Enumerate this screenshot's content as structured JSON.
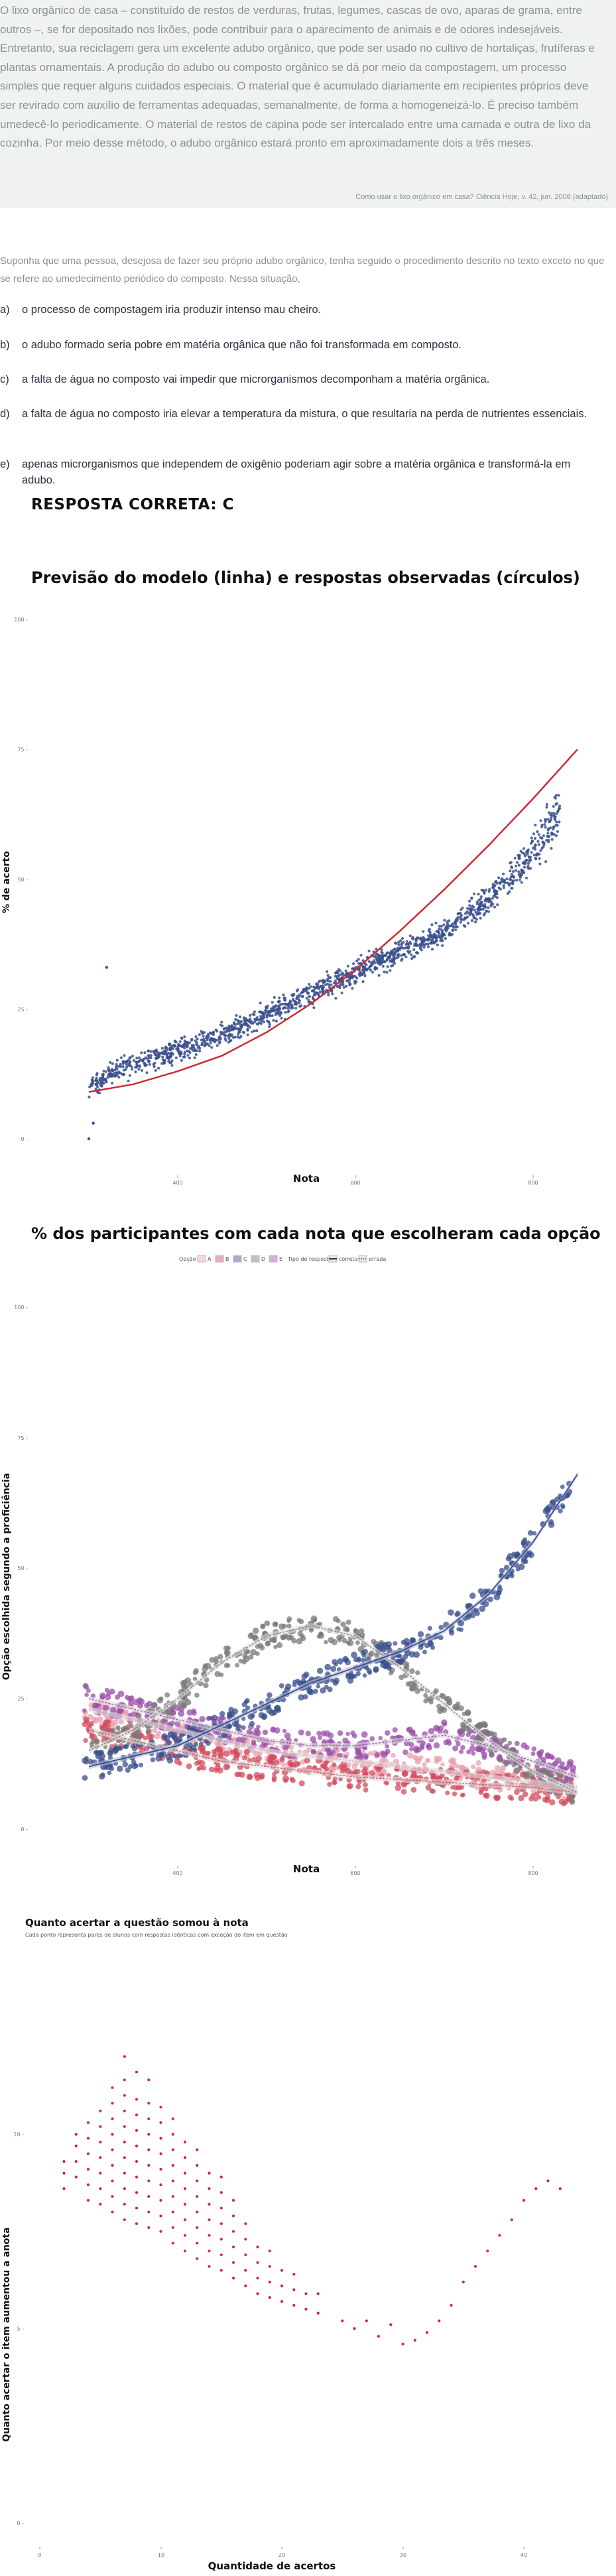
{
  "quote": {
    "text": "O lixo orgânico de casa – constituído de restos de verduras, frutas, legumes, cascas de ovo, aparas de grama, entre outros –, se for depositado nos lixões, pode contribuir para o aparecimento de animais e de odores indesejáveis. Entretanto, sua reciclagem gera um excelente adubo orgânico, que pode ser usado no cultivo de hortaliças, frutíferas e plantas ornamentais. A produção do adubo ou composto orgânico se dá por meio da compostagem, um processo simples que requer alguns cuidados especiais. O material que é acumulado diariamente em recipientes próprios deve ser revirado com auxílio de ferramentas adequadas, semanalmente, de forma a homogeneizá-lo. É preciso também umedecê-lo periodicamente. O material de restos de capina pode ser intercalado entre uma camada e outra de lixo da cozinha. Por meio desse método, o adubo orgânico estará pronto em aproximadamente dois a três meses.",
    "source": "Como usar o lixo orgânico em casa? Ciência Hoje, v. 42, jun. 2008 (adaptado)"
  },
  "prompt": "Suponha que uma pessoa, desejosa de fazer seu próprio adubo orgânico, tenha seguido o procedimento descrito no texto exceto no que se refere ao umedecimento periódico do composto. Nessa situação,",
  "options": [
    {
      "letter": "a)",
      "text": "o processo de compostagem iria produzir intenso mau cheiro."
    },
    {
      "letter": "b)",
      "text": "o adubo formado seria pobre em matéria orgânica que não foi transformada em composto."
    },
    {
      "letter": "c)",
      "text": "a falta de água no composto vai impedir que microrganismos decomponham a matéria orgânica."
    },
    {
      "letter": "d)",
      "text": "a falta de água no composto iria elevar a temperatura da mistura, o que resultaria na perda de nutrientes essenciais."
    },
    {
      "letter": "e)",
      "text": "apenas microrganismos que independem de oxigênio poderiam agir sobre a matéria orgânica e transformá-la em adubo."
    }
  ],
  "answer": "RESPOSTA CORRETA: C",
  "colors": {
    "A": "#e8a1b0",
    "B": "#d14b5e",
    "C": "#3a4f8c",
    "D": "#7a7778",
    "E": "#9a4fa8",
    "model_line": "#cc2a36",
    "points": "#3a4f8c",
    "fit_band": "#b7bdd6",
    "gain_points": "#d32644",
    "grid": "#e6e6e6"
  },
  "chart_data": [
    {
      "type": "scatter",
      "title": "Previsão do modelo (linha) e respostas observadas (círculos)",
      "xlabel": "Nota",
      "ylabel": "% de acerto",
      "x_ticks": [
        "400",
        "600",
        "800"
      ],
      "y_ticks": [
        "0 -",
        "25 -",
        "50 -",
        "75 -",
        "100 -"
      ],
      "xlim": [
        250,
        870
      ],
      "ylim": [
        0,
        100
      ],
      "grid": false,
      "model_line": {
        "x": [
          300,
          350,
          400,
          450,
          500,
          550,
          600,
          650,
          700,
          750,
          800,
          850
        ],
        "y": [
          9,
          10.5,
          13,
          16,
          20.5,
          26,
          32.5,
          40,
          48,
          56.5,
          65.5,
          75
        ]
      },
      "observed_trend": {
        "x": [
          300,
          330,
          360,
          400,
          450,
          500,
          550,
          600,
          650,
          700,
          750,
          800,
          830
        ],
        "y": [
          10,
          13,
          15,
          17,
          20,
          24,
          28,
          32,
          36,
          40,
          46,
          55,
          63
        ]
      },
      "outliers": [
        [
          320,
          33
        ],
        [
          300,
          0
        ],
        [
          305,
          3
        ]
      ]
    },
    {
      "type": "scatter",
      "title": "% dos participantes com cada nota que escolheram cada opção",
      "xlabel": "Nota",
      "ylabel": "Opção escolhida segundo a proficiência",
      "x_ticks": [
        "400",
        "600",
        "800"
      ],
      "y_ticks": [
        "0 -",
        "25 -",
        "50 -",
        "75 -",
        "100 -"
      ],
      "xlim": [
        250,
        870
      ],
      "ylim": [
        0,
        100
      ],
      "legend_position": "top",
      "legend": {
        "option_label": "Opção",
        "options": [
          "A",
          "B",
          "C",
          "D",
          "E"
        ],
        "type_label": "Tipo de resposta",
        "types": [
          "correta",
          "errada"
        ]
      },
      "series": [
        {
          "name": "A",
          "x": [
            300,
            350,
            400,
            450,
            500,
            550,
            600,
            650,
            700,
            750,
            800,
            850
          ],
          "y": [
            23,
            21,
            19,
            17,
            15,
            14,
            13,
            12,
            11,
            10,
            9,
            8
          ]
        },
        {
          "name": "B",
          "x": [
            300,
            350,
            400,
            450,
            500,
            550,
            600,
            650,
            700,
            750,
            800,
            850
          ],
          "y": [
            19,
            17,
            15,
            13,
            12,
            11,
            10,
            9.5,
            9,
            8.5,
            8,
            7
          ]
        },
        {
          "name": "C",
          "x": [
            300,
            350,
            400,
            450,
            500,
            550,
            600,
            650,
            700,
            750,
            800,
            850
          ],
          "y": [
            12,
            14,
            16,
            20,
            24,
            28,
            31,
            34,
            38,
            45,
            55,
            68
          ]
        },
        {
          "name": "D",
          "x": [
            300,
            350,
            400,
            450,
            500,
            550,
            600,
            650,
            700,
            750,
            800,
            850
          ],
          "y": [
            15,
            19,
            25,
            32,
            37,
            39,
            37,
            31,
            24,
            17,
            11,
            7
          ]
        },
        {
          "name": "E",
          "x": [
            300,
            350,
            400,
            450,
            500,
            550,
            600,
            650,
            700,
            750,
            800,
            850
          ],
          "y": [
            25,
            23,
            21,
            19,
            17,
            16,
            16,
            17,
            18,
            16,
            13,
            10
          ]
        }
      ]
    },
    {
      "type": "scatter",
      "title": "Quanto acertar a questão somou à nota",
      "subtitle": "Cada ponto representa pares de alunos com respostas idênticas com exceção do item em questão",
      "xlabel": "Quantidade de acertos",
      "ylabel": "Quanto acertar o item aumentou a anota",
      "x_ticks": [
        "0",
        "10",
        "20",
        "30",
        "40"
      ],
      "y_ticks": [
        "0 -",
        "5 -",
        "10 -"
      ],
      "xlim": [
        -1,
        46
      ],
      "ylim": [
        -0.3,
        13
      ],
      "points": [
        [
          2,
          8.6
        ],
        [
          2,
          9.0
        ],
        [
          2,
          9.3
        ],
        [
          3,
          8.9
        ],
        [
          3,
          9.3
        ],
        [
          3,
          9.7
        ],
        [
          3,
          10.0
        ],
        [
          4,
          8.3
        ],
        [
          4,
          8.7
        ],
        [
          4,
          9.1
        ],
        [
          4,
          9.5
        ],
        [
          4,
          9.9
        ],
        [
          4,
          10.3
        ],
        [
          5,
          8.2
        ],
        [
          5,
          8.6
        ],
        [
          5,
          9.0
        ],
        [
          5,
          9.4
        ],
        [
          5,
          9.8
        ],
        [
          5,
          10.2
        ],
        [
          5,
          10.6
        ],
        [
          6,
          8.0
        ],
        [
          6,
          8.4
        ],
        [
          6,
          8.8
        ],
        [
          6,
          9.2
        ],
        [
          6,
          9.6
        ],
        [
          6,
          10.0
        ],
        [
          6,
          10.4
        ],
        [
          6,
          10.8
        ],
        [
          6,
          11.2
        ],
        [
          7,
          7.8
        ],
        [
          7,
          8.2
        ],
        [
          7,
          8.6
        ],
        [
          7,
          9.0
        ],
        [
          7,
          9.4
        ],
        [
          7,
          9.8
        ],
        [
          7,
          10.2
        ],
        [
          7,
          10.6
        ],
        [
          7,
          11.0
        ],
        [
          7,
          11.4
        ],
        [
          7,
          12.0
        ],
        [
          8,
          7.7
        ],
        [
          8,
          8.1
        ],
        [
          8,
          8.5
        ],
        [
          8,
          8.9
        ],
        [
          8,
          9.3
        ],
        [
          8,
          9.7
        ],
        [
          8,
          10.1
        ],
        [
          8,
          10.5
        ],
        [
          8,
          10.9
        ],
        [
          8,
          11.6
        ],
        [
          9,
          7.6
        ],
        [
          9,
          8.0
        ],
        [
          9,
          8.4
        ],
        [
          9,
          8.8
        ],
        [
          9,
          9.2
        ],
        [
          9,
          9.6
        ],
        [
          9,
          10.0
        ],
        [
          9,
          10.4
        ],
        [
          9,
          10.8
        ],
        [
          9,
          11.4
        ],
        [
          10,
          7.5
        ],
        [
          10,
          7.9
        ],
        [
          10,
          8.3
        ],
        [
          10,
          8.7
        ],
        [
          10,
          9.1
        ],
        [
          10,
          9.5
        ],
        [
          10,
          9.9
        ],
        [
          10,
          10.3
        ],
        [
          10,
          10.7
        ],
        [
          11,
          7.2
        ],
        [
          11,
          7.6
        ],
        [
          11,
          8.0
        ],
        [
          11,
          8.4
        ],
        [
          11,
          8.8
        ],
        [
          11,
          9.2
        ],
        [
          11,
          9.6
        ],
        [
          11,
          10.0
        ],
        [
          11,
          10.4
        ],
        [
          12,
          7.0
        ],
        [
          12,
          7.4
        ],
        [
          12,
          7.8
        ],
        [
          12,
          8.2
        ],
        [
          12,
          8.6
        ],
        [
          12,
          9.0
        ],
        [
          12,
          9.4
        ],
        [
          12,
          9.8
        ],
        [
          13,
          6.8
        ],
        [
          13,
          7.2
        ],
        [
          13,
          7.6
        ],
        [
          13,
          8.0
        ],
        [
          13,
          8.4
        ],
        [
          13,
          8.8
        ],
        [
          13,
          9.2
        ],
        [
          13,
          9.6
        ],
        [
          14,
          6.6
        ],
        [
          14,
          7.0
        ],
        [
          14,
          7.4
        ],
        [
          14,
          7.8
        ],
        [
          14,
          8.2
        ],
        [
          14,
          8.6
        ],
        [
          14,
          9.0
        ],
        [
          15,
          6.5
        ],
        [
          15,
          6.9
        ],
        [
          15,
          7.3
        ],
        [
          15,
          7.7
        ],
        [
          15,
          8.1
        ],
        [
          15,
          8.5
        ],
        [
          15,
          8.9
        ],
        [
          16,
          6.3
        ],
        [
          16,
          6.7
        ],
        [
          16,
          7.1
        ],
        [
          16,
          7.5
        ],
        [
          16,
          7.9
        ],
        [
          16,
          8.3
        ],
        [
          17,
          6.1
        ],
        [
          17,
          6.5
        ],
        [
          17,
          6.9
        ],
        [
          17,
          7.3
        ],
        [
          17,
          7.7
        ],
        [
          18,
          5.9
        ],
        [
          18,
          6.3
        ],
        [
          18,
          6.7
        ],
        [
          18,
          7.1
        ],
        [
          19,
          5.8
        ],
        [
          19,
          6.2
        ],
        [
          19,
          6.6
        ],
        [
          19,
          7.0
        ],
        [
          20,
          5.7
        ],
        [
          20,
          6.1
        ],
        [
          20,
          6.5
        ],
        [
          21,
          5.6
        ],
        [
          21,
          6.0
        ],
        [
          21,
          6.4
        ],
        [
          22,
          5.5
        ],
        [
          22,
          5.9
        ],
        [
          23,
          5.4
        ],
        [
          23,
          5.9
        ],
        [
          25,
          5.2
        ],
        [
          26,
          5.0
        ],
        [
          27,
          5.2
        ],
        [
          28,
          4.8
        ],
        [
          29,
          5.1
        ],
        [
          30,
          4.6
        ],
        [
          31,
          4.7
        ],
        [
          32,
          4.9
        ],
        [
          33,
          5.2
        ],
        [
          34,
          5.6
        ],
        [
          35,
          6.2
        ],
        [
          36,
          6.6
        ],
        [
          37,
          7.0
        ],
        [
          38,
          7.4
        ],
        [
          39,
          7.8
        ],
        [
          40,
          8.3
        ],
        [
          41,
          8.6
        ],
        [
          42,
          8.8
        ],
        [
          43,
          8.6
        ]
      ]
    }
  ]
}
